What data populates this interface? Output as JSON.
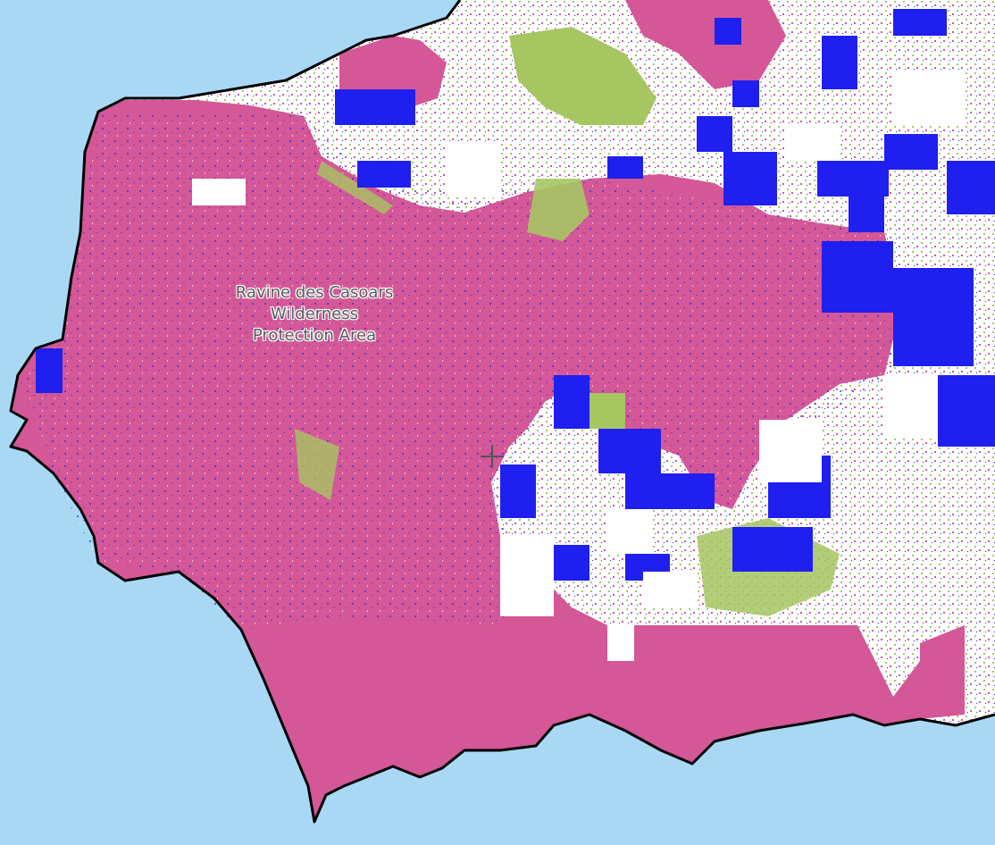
{
  "map": {
    "colors": {
      "sea": "#a9d8f5",
      "burn_high": "#d45797",
      "burn_extreme": "#1f1fef",
      "vegetation": "#a6c662",
      "unburnt": "#ffffff",
      "coastline": "#000000"
    },
    "labels": {
      "protected_area": [
        "Ravine des Casoars",
        "Wilderness",
        "Protection Area"
      ]
    },
    "center_marker": "crosshair-icon"
  }
}
